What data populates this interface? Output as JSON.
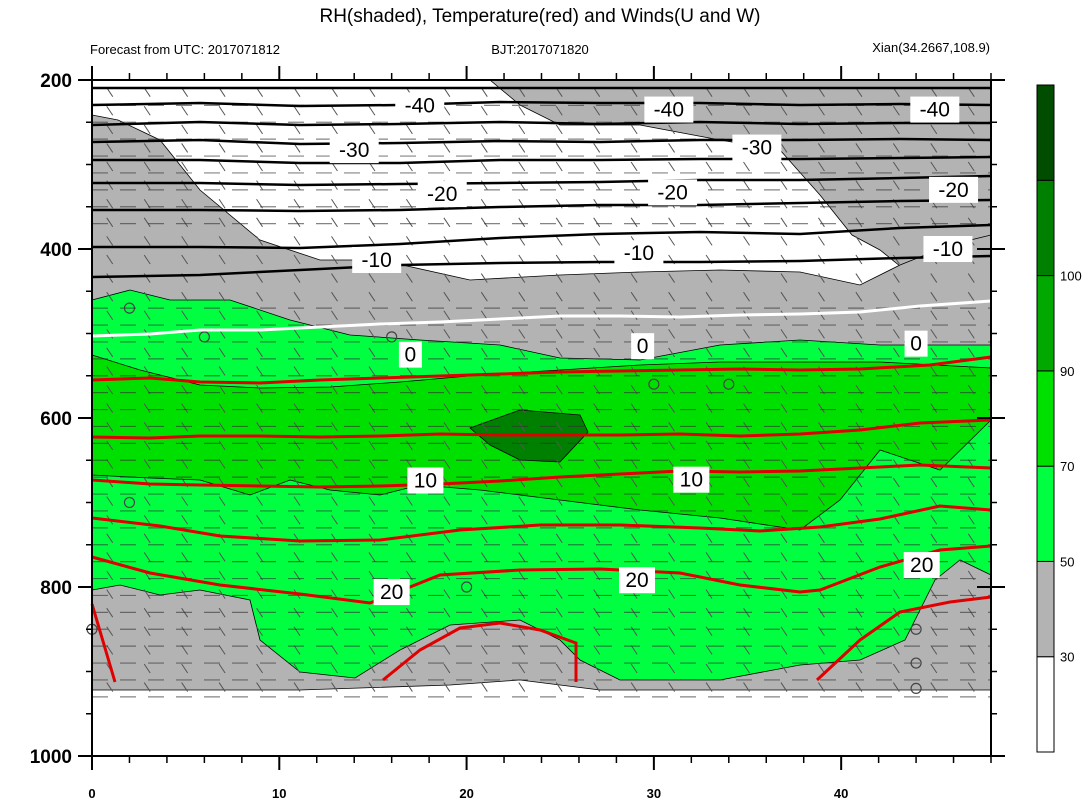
{
  "chart_data": {
    "type": "contour",
    "title": "RH(shaded), Temperature(red) and Winds(U and W)",
    "subtitle_left": "Forecast from UTC: 2017071812",
    "subtitle_center": "BJT:2017071820",
    "subtitle_right": "Xian(34.2667,108.9)",
    "x_ticks": [
      "0",
      "10",
      "20",
      "30",
      "40"
    ],
    "xlim": [
      0,
      48
    ],
    "y_ticks": [
      "200",
      "400",
      "600",
      "800",
      "1000"
    ],
    "ylim": [
      200,
      1000
    ],
    "colorbar": {
      "levels": [
        "30",
        "50",
        "70",
        "90",
        "100"
      ],
      "colors": [
        "#ffffff",
        "#b3b3b3",
        "#00ff40",
        "#00e000",
        "#00a800",
        "#008000",
        "#004d00"
      ]
    },
    "temperature_labels": [
      {
        "text": "-40",
        "x": 17.5,
        "p": 230
      },
      {
        "text": "-40",
        "x": 30.8,
        "p": 235
      },
      {
        "text": "-40",
        "x": 45.0,
        "p": 235
      },
      {
        "text": "-30",
        "x": 14.0,
        "p": 283
      },
      {
        "text": "-30",
        "x": 35.5,
        "p": 280
      },
      {
        "text": "-20",
        "x": 18.7,
        "p": 335
      },
      {
        "text": "-20",
        "x": 31.0,
        "p": 333
      },
      {
        "text": "-20",
        "x": 46.0,
        "p": 330
      },
      {
        "text": "-10",
        "x": 15.2,
        "p": 413
      },
      {
        "text": "-10",
        "x": 29.2,
        "p": 405
      },
      {
        "text": "-10",
        "x": 45.7,
        "p": 400
      },
      {
        "text": "0",
        "x": 17.0,
        "p": 525
      },
      {
        "text": "0",
        "x": 29.4,
        "p": 515
      },
      {
        "text": "0",
        "x": 44.0,
        "p": 512
      },
      {
        "text": "10",
        "x": 17.8,
        "p": 674
      },
      {
        "text": "10",
        "x": 32.0,
        "p": 673
      },
      {
        "text": "20",
        "x": 16.0,
        "p": 806
      },
      {
        "text": "20",
        "x": 29.1,
        "p": 792
      },
      {
        "text": "20",
        "x": 44.3,
        "p": 774
      }
    ]
  }
}
